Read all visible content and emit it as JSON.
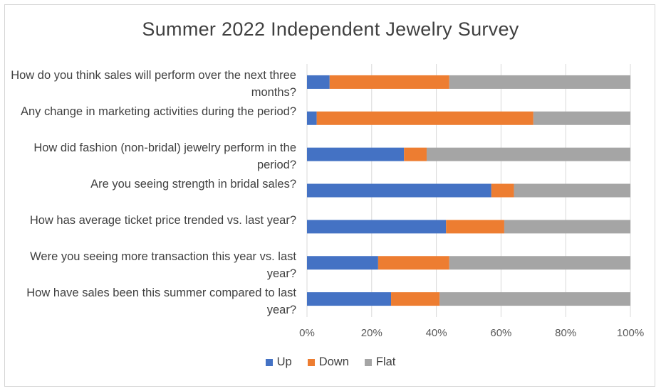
{
  "chart_data": {
    "type": "bar",
    "orientation": "horizontal",
    "stacked": "percent",
    "title": "Summer 2022 Independent Jewelry Survey",
    "categories": [
      "How do you think sales will perform over the next three months?",
      "Any change in marketing activities during the period?",
      "How did fashion (non-bridal) jewelry perform in the period?",
      "Are you seeing strength in bridal sales?",
      "How has average ticket price trended  vs. last year?",
      "Were you seeing more transaction this year vs. last year?",
      "How have sales been this summer compared to last year?"
    ],
    "series": [
      {
        "name": "Up",
        "color": "#4472c4",
        "values": [
          7,
          3,
          30,
          57,
          43,
          22,
          26
        ]
      },
      {
        "name": "Down",
        "color": "#ed7d31",
        "values": [
          37,
          67,
          7,
          7,
          18,
          22,
          15
        ]
      },
      {
        "name": "Flat",
        "color": "#a5a5a5",
        "values": [
          56,
          30,
          63,
          36,
          39,
          56,
          59
        ]
      }
    ],
    "xlim": [
      0,
      100
    ],
    "xticks": [
      "0%",
      "20%",
      "40%",
      "60%",
      "80%",
      "100%"
    ],
    "grid": true,
    "legend": "bottom"
  }
}
